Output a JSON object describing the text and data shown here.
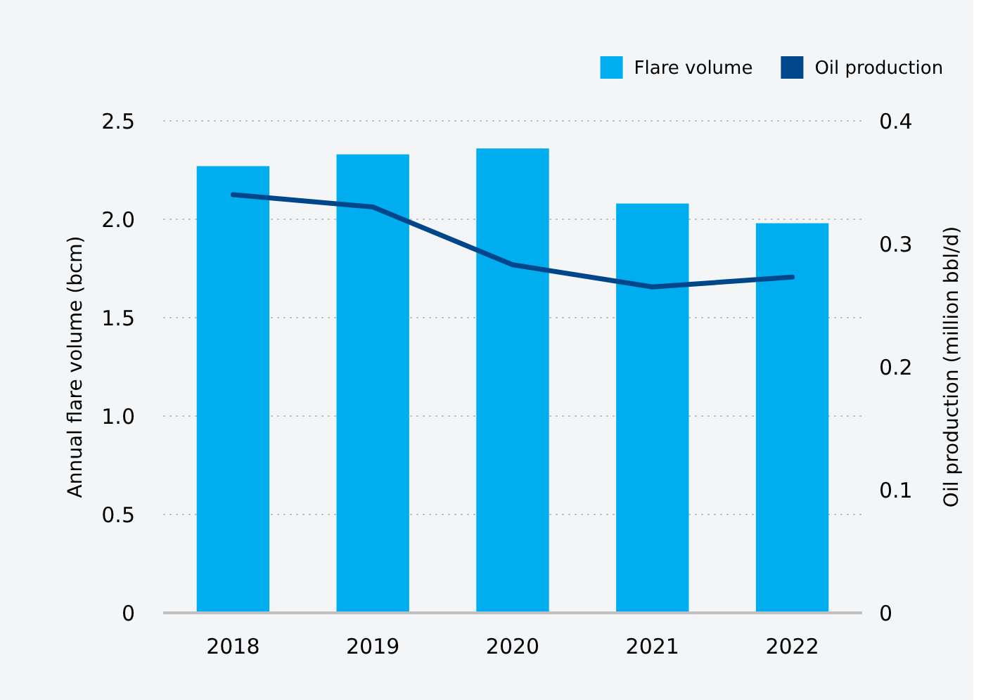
{
  "chart_data": {
    "type": "bar",
    "categories": [
      "2018",
      "2019",
      "2020",
      "2021",
      "2022"
    ],
    "ylabel": "Annual flare volume (bcm)",
    "y2label": "Oil production (million bbl/d)",
    "series": [
      {
        "name": "Flare volume",
        "color": "#00aeef",
        "values": [
          2.27,
          2.33,
          2.36,
          2.08,
          1.98
        ]
      },
      {
        "name": "Oil production",
        "type": "line",
        "axis": "y2",
        "color": "#00468b",
        "values": [
          0.34,
          0.33,
          0.283,
          0.265,
          0.273
        ]
      }
    ],
    "ylim": [
      0,
      2.5
    ],
    "yticks": [
      0,
      0.5,
      {
        "value": 1,
        "label": "1.0"
      },
      1.5,
      {
        "value": 2,
        "label": "2.0"
      },
      2.5
    ],
    "y2lim": [
      0,
      0.4
    ],
    "y2ticks": [
      0,
      0.1,
      0.2,
      0.3,
      0.4
    ],
    "grid": "y",
    "legend": "top right",
    "marker": "none",
    "line_style": "solid"
  }
}
